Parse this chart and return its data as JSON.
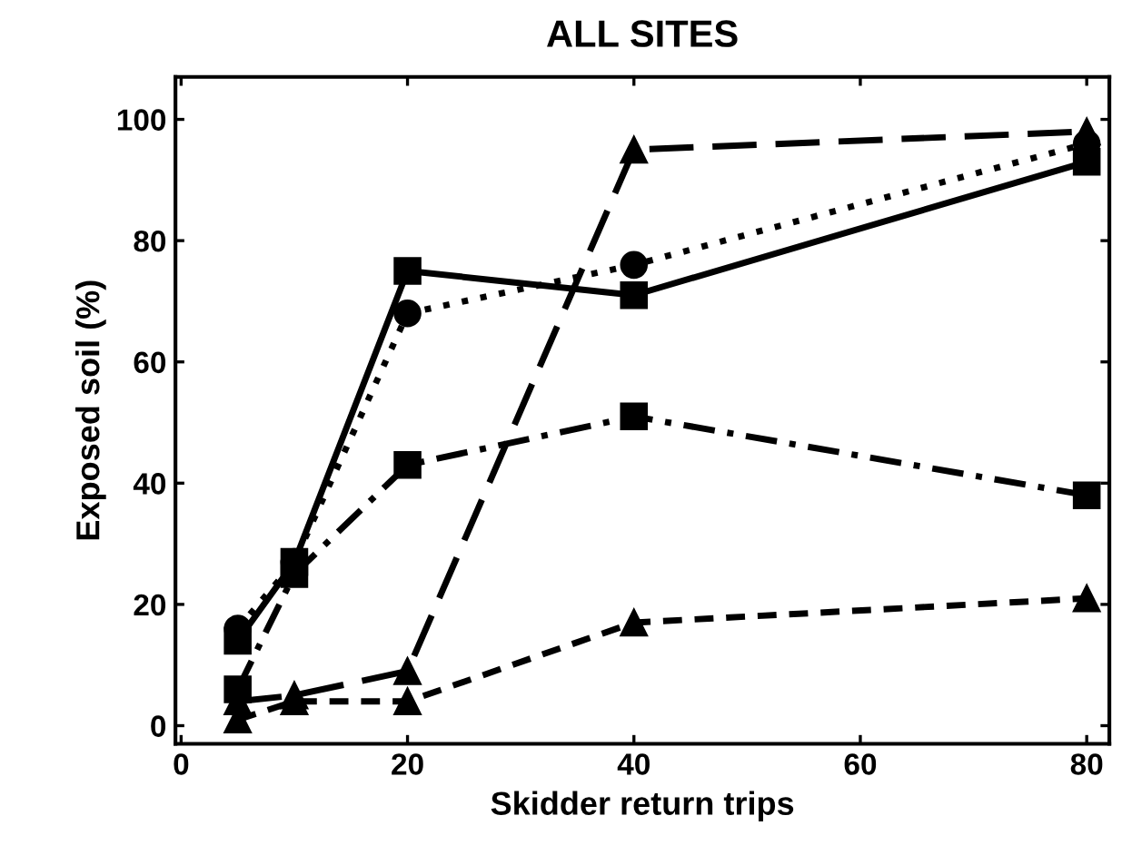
{
  "chart_data": {
    "type": "line",
    "title": "ALL SITES",
    "xlabel": "Skidder return trips",
    "ylabel": "Exposed soil (%)",
    "x": [
      5,
      10,
      20,
      40,
      80
    ],
    "xlim": [
      -0.5,
      82
    ],
    "xticks": [
      0,
      20,
      40,
      60,
      80
    ],
    "ylim": [
      -3,
      107
    ],
    "yticks": [
      0,
      20,
      40,
      60,
      80,
      100
    ],
    "grid": false,
    "legend": false,
    "series": [
      {
        "color": "#000000",
        "marker": "square",
        "line_style": "solid",
        "values": [
          14,
          27,
          75,
          71,
          93
        ]
      },
      {
        "color": "#000000",
        "marker": "circle",
        "line_style": "dotted",
        "values": [
          16,
          27,
          68,
          76,
          96
        ]
      },
      {
        "color": "#000000",
        "marker": "square",
        "line_style": "dashdot",
        "values": [
          6,
          25,
          43,
          51,
          38
        ]
      },
      {
        "color": "#000000",
        "marker": "triangle",
        "line_style": "longdash",
        "values": [
          4,
          5,
          9,
          95,
          98
        ]
      },
      {
        "color": "#000000",
        "marker": "triangle",
        "line_style": "dashed",
        "values": [
          1,
          4,
          4,
          17,
          21
        ]
      }
    ]
  }
}
